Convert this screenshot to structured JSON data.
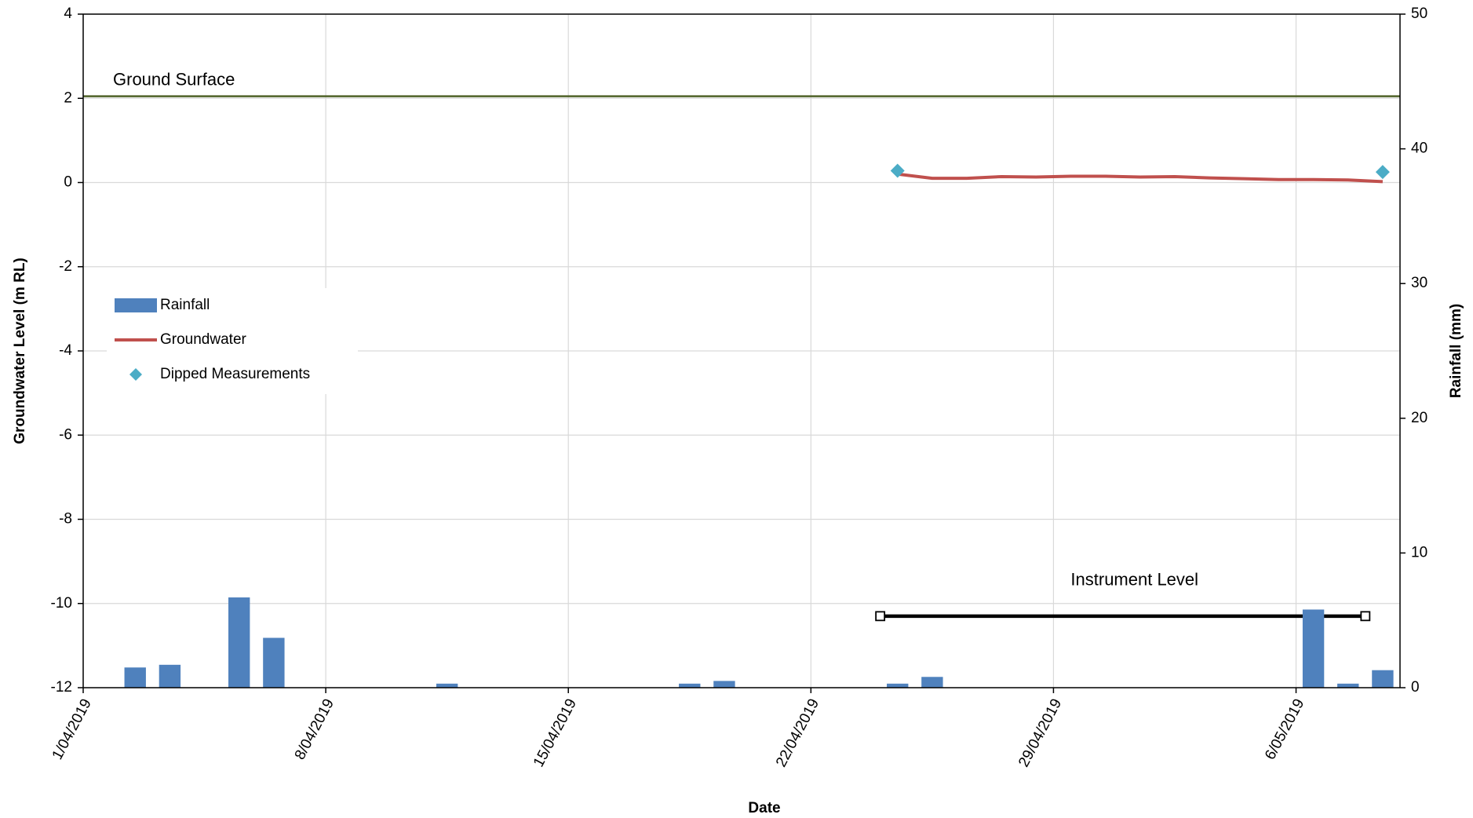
{
  "chart_data": {
    "type": "combo",
    "x_label": "Date",
    "y_label": "Groundwater Level (m RL)",
    "y2_label": "Rainfall (mm)",
    "xlim": [
      "1/04/2019",
      "9/05/2019"
    ],
    "xticks": [
      "1/04/2019",
      "8/04/2019",
      "15/04/2019",
      "22/04/2019",
      "29/04/2019",
      "6/05/2019"
    ],
    "ylim": [
      -12,
      4
    ],
    "yticks": [
      -12,
      -10,
      -8,
      -6,
      -4,
      -2,
      0,
      2,
      4
    ],
    "y2lim": [
      0,
      50
    ],
    "y2ticks": [
      0,
      10,
      20,
      30,
      40,
      50
    ],
    "grid": true,
    "legend": "center left",
    "series": [
      {
        "name": "Rainfall",
        "type": "bar",
        "axis": "y2",
        "color": "#4f81bd",
        "x": [
          "2/04/2019",
          "3/04/2019",
          "5/04/2019",
          "6/04/2019",
          "11/04/2019",
          "18/04/2019",
          "19/04/2019",
          "24/04/2019",
          "25/04/2019",
          "6/05/2019",
          "7/05/2019",
          "8/05/2019"
        ],
        "values": [
          1.5,
          1.7,
          6.7,
          3.7,
          0.3,
          0.3,
          0.5,
          0.3,
          0.8,
          5.8,
          0.3,
          1.3
        ]
      },
      {
        "name": "Groundwater",
        "type": "line",
        "color": "#c0504d",
        "x": [
          "24/04/2019",
          "25/04/2019",
          "26/04/2019",
          "27/04/2019",
          "28/04/2019",
          "29/04/2019",
          "30/04/2019",
          "1/05/2019",
          "2/05/2019",
          "3/05/2019",
          "4/05/2019",
          "5/05/2019",
          "6/05/2019",
          "7/05/2019",
          "8/05/2019"
        ],
        "values": [
          0.2,
          0.1,
          0.1,
          0.14,
          0.13,
          0.15,
          0.15,
          0.13,
          0.14,
          0.11,
          0.09,
          0.07,
          0.07,
          0.06,
          0.02
        ]
      },
      {
        "name": "Dipped Measurements",
        "type": "scatter",
        "color": "#4bacc6",
        "x": [
          "24/04/2019",
          "8/05/2019"
        ],
        "values": [
          0.28,
          0.25
        ]
      }
    ],
    "reference_lines": [
      {
        "label": "Ground Surface",
        "value": 2.05,
        "color": "#4f6228",
        "x": [
          "1/04/2019",
          "9/05/2019"
        ]
      },
      {
        "label": "Instrument Level",
        "value": -10.3,
        "color": "#000000",
        "x": [
          "24/04/2019",
          "8/05/2019"
        ]
      }
    ]
  }
}
